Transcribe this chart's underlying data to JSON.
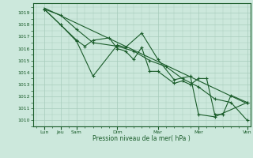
{
  "bg_color": "#cce8dc",
  "grid_color": "#a8ccbc",
  "line_color": "#1a5c2a",
  "xlabel_text": "Pression niveau de la mer( hPa )",
  "ytick_min": 1010,
  "ytick_max": 1019,
  "ylim": [
    1009.5,
    1019.8
  ],
  "xlim": [
    -0.2,
    13.2
  ],
  "xtick_positions": [
    0.5,
    1.5,
    2.5,
    5.0,
    7.5,
    10.0,
    13.0
  ],
  "xtick_labels": [
    "Lun",
    "Jeu",
    "Sam",
    "Dim",
    "Mar",
    "Mer",
    "Ven"
  ],
  "series1_x": [
    0.5,
    1.5,
    2.5,
    3.0,
    3.5,
    4.5,
    5.0,
    5.5,
    6.0,
    6.5,
    7.0,
    7.5,
    8.5,
    9.0,
    9.5,
    10.0,
    10.5,
    11.0,
    11.5,
    12.0,
    13.0
  ],
  "series1_y": [
    1019.3,
    1018.0,
    1016.7,
    1016.2,
    1016.7,
    1016.9,
    1016.0,
    1015.8,
    1015.1,
    1016.1,
    1014.1,
    1014.1,
    1013.1,
    1013.3,
    1013.0,
    1013.5,
    1013.5,
    1010.5,
    1010.5,
    1012.1,
    1011.5
  ],
  "series2_x": [
    0.5,
    1.5,
    2.5,
    3.5,
    5.0,
    5.5,
    6.5,
    7.5,
    8.5,
    9.5,
    10.0,
    11.0,
    13.0
  ],
  "series2_y": [
    1019.3,
    1018.0,
    1016.6,
    1013.7,
    1016.3,
    1016.1,
    1017.3,
    1015.1,
    1013.4,
    1013.7,
    1010.5,
    1010.3,
    1011.5
  ],
  "series3_x": [
    0.5,
    1.5,
    2.5,
    3.5,
    5.0,
    6.0,
    7.0,
    8.0,
    9.0,
    10.0,
    11.0,
    12.0,
    13.0
  ],
  "series3_y": [
    1019.3,
    1018.8,
    1017.6,
    1016.5,
    1016.2,
    1015.8,
    1015.0,
    1014.5,
    1013.5,
    1012.8,
    1011.8,
    1011.5,
    1010.0
  ],
  "series4_x": [
    0.5,
    13.0
  ],
  "series4_y": [
    1019.4,
    1011.4
  ],
  "figsize": [
    3.2,
    2.0
  ],
  "dpi": 100
}
